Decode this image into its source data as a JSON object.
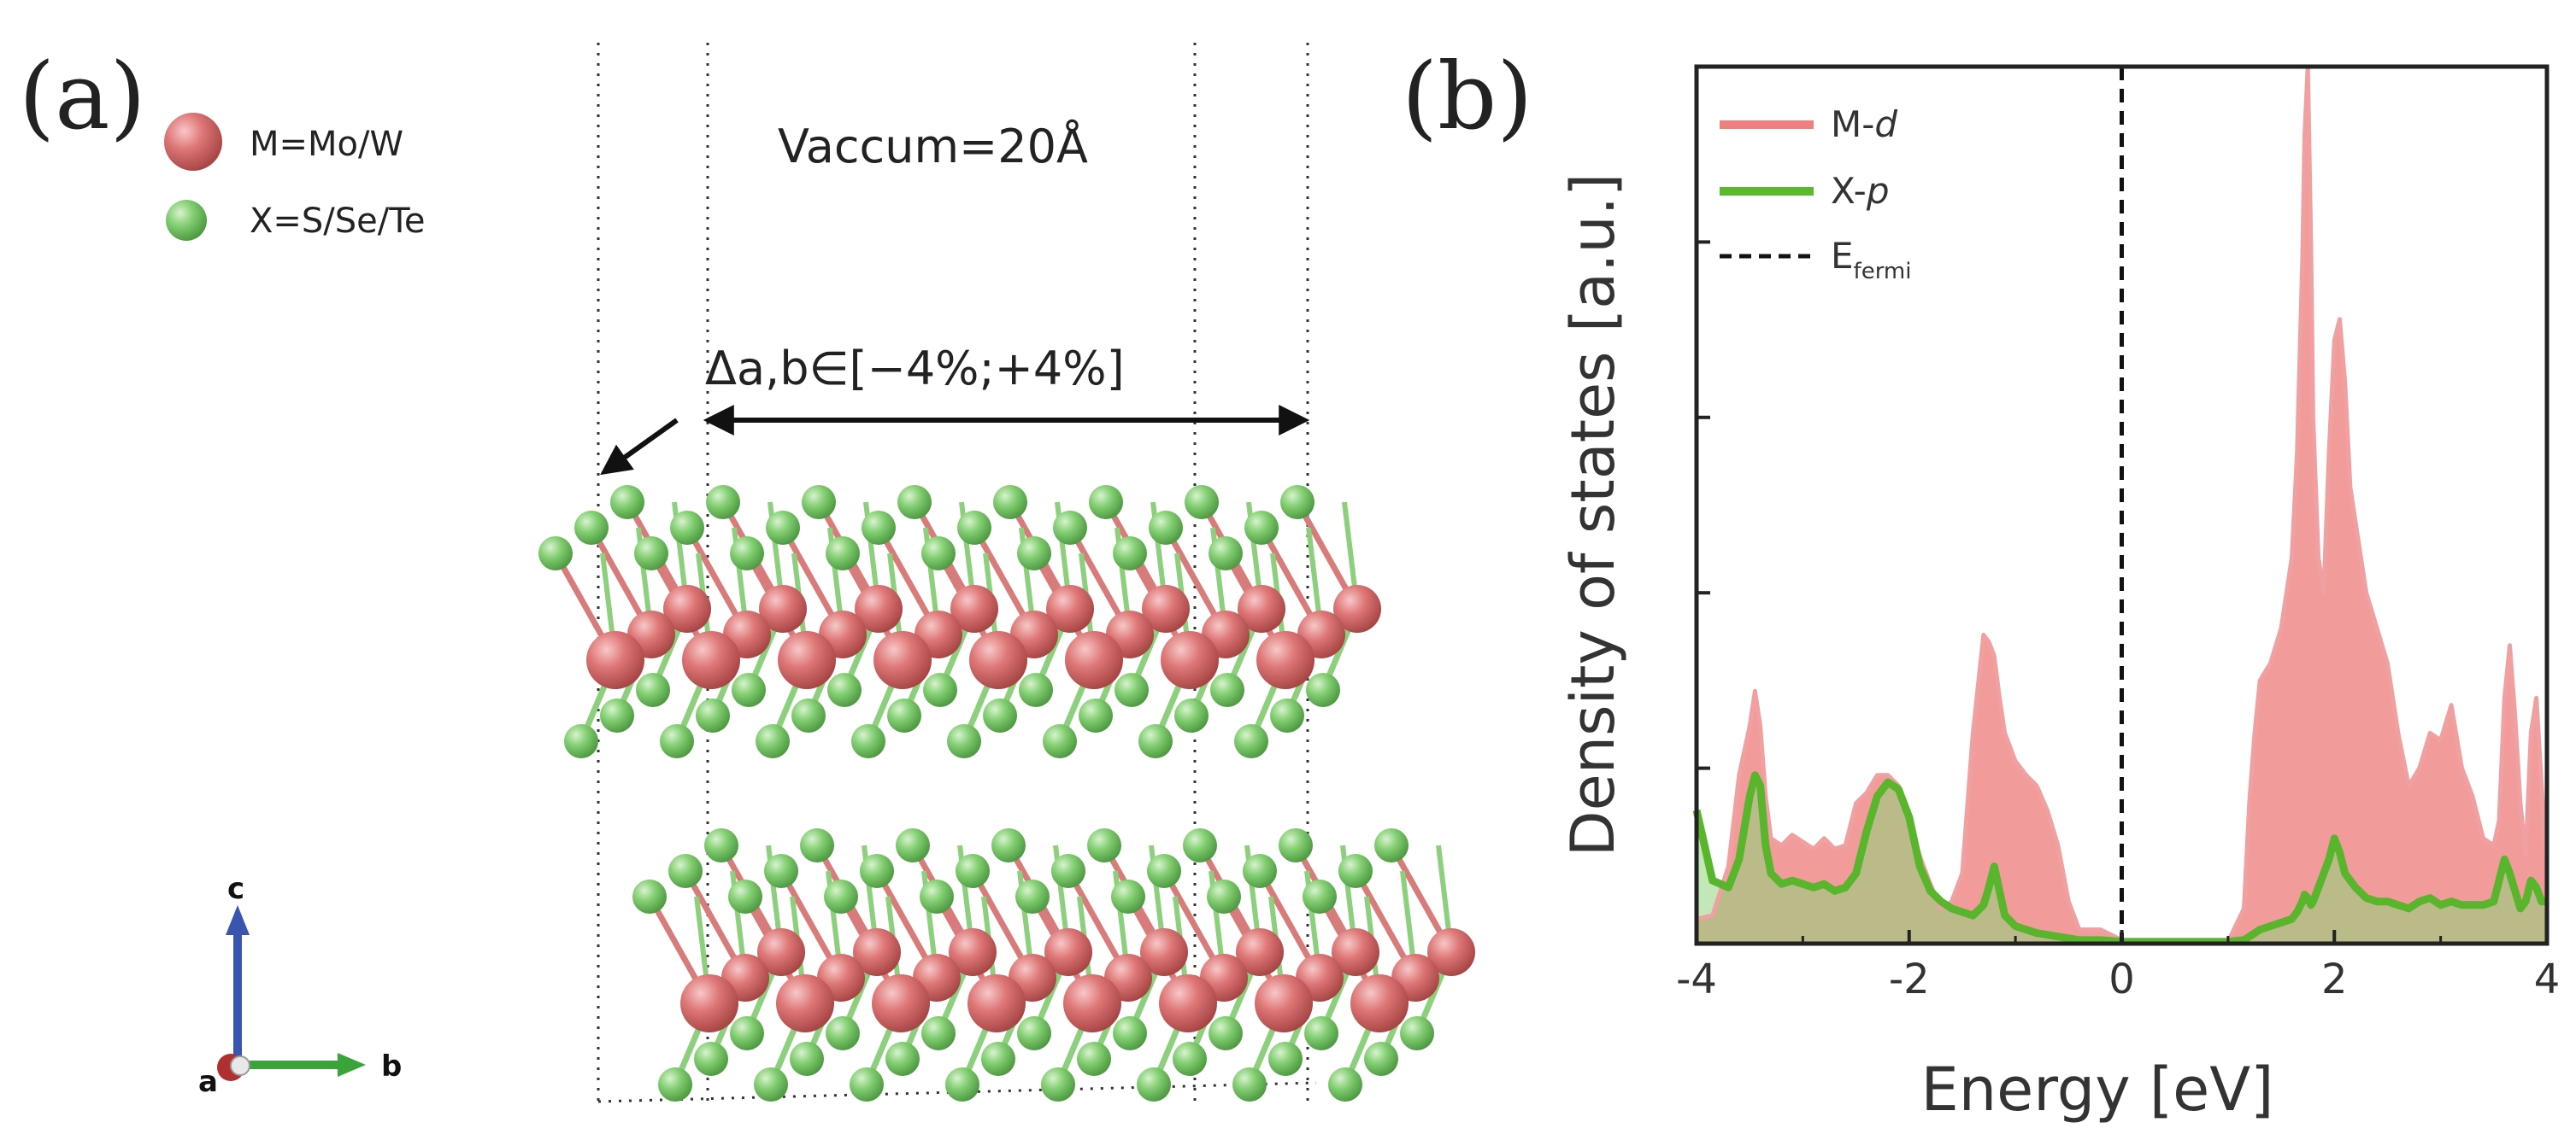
{
  "panel_a": {
    "label": "(a)",
    "legend": [
      {
        "text": "M=Mo/W",
        "color": "#d9686a"
      },
      {
        "text": "X=S/Se/Te",
        "color": "#7cc96d"
      }
    ],
    "vacuum_label": "Vaccum=20Å",
    "strain_label": "Δa,b∈[−4%;+4%]",
    "axes": {
      "c": "c",
      "a": "a",
      "b": "b"
    },
    "colors": {
      "metal": "#d9686a",
      "chalcogen": "#78c868",
      "c_axis": "#3a55b0",
      "b_axis": "#3aa33a",
      "a_axis": "#b03030"
    }
  },
  "panel_b": {
    "label": "(b)",
    "legend": [
      {
        "name": "M-d",
        "prefix": "M-",
        "italic": "d",
        "color": "#ee8080"
      },
      {
        "name": "X-p",
        "prefix": "X-",
        "italic": "p",
        "color": "#5cb82c"
      },
      {
        "name": "E_fermi",
        "prefix": "E",
        "sub": "fermi",
        "color": "#111111"
      }
    ]
  },
  "chart_data": {
    "type": "area",
    "title": "",
    "xlabel": "Energy [eV]",
    "ylabel": "Density of states [a.u.]",
    "xlim": [
      -4,
      4
    ],
    "ylim": [
      0,
      2.5
    ],
    "xticks": [
      -4,
      -2,
      0,
      2,
      4
    ],
    "xtick_labels": [
      "-4",
      "-2",
      "0",
      "2",
      "4"
    ],
    "yticks": [
      0.5,
      1.0,
      1.5,
      2.0
    ],
    "ytick_labels": [],
    "fermi_level": 0,
    "x": [
      -4.0,
      -3.85,
      -3.7,
      -3.6,
      -3.5,
      -3.45,
      -3.4,
      -3.35,
      -3.3,
      -3.2,
      -3.1,
      -3.0,
      -2.9,
      -2.8,
      -2.7,
      -2.6,
      -2.5,
      -2.4,
      -2.3,
      -2.2,
      -2.1,
      -2.0,
      -1.9,
      -1.8,
      -1.7,
      -1.6,
      -1.5,
      -1.4,
      -1.3,
      -1.25,
      -1.2,
      -1.15,
      -1.1,
      -1.0,
      -0.9,
      -0.8,
      -0.7,
      -0.6,
      -0.5,
      -0.4,
      -0.2,
      0.0,
      0.4,
      0.8,
      1.0,
      1.15,
      1.2,
      1.25,
      1.3,
      1.4,
      1.5,
      1.6,
      1.65,
      1.7,
      1.72,
      1.75,
      1.78,
      1.8,
      1.85,
      1.9,
      1.95,
      2.0,
      2.05,
      2.1,
      2.15,
      2.2,
      2.3,
      2.4,
      2.5,
      2.6,
      2.7,
      2.8,
      2.9,
      3.0,
      3.1,
      3.2,
      3.3,
      3.4,
      3.5,
      3.55,
      3.6,
      3.65,
      3.7,
      3.75,
      3.8,
      3.85,
      3.9,
      3.95,
      4.0
    ],
    "series": [
      {
        "name": "M-d",
        "values": [
          0.07,
          0.08,
          0.22,
          0.48,
          0.62,
          0.72,
          0.62,
          0.42,
          0.3,
          0.28,
          0.31,
          0.29,
          0.27,
          0.3,
          0.27,
          0.28,
          0.4,
          0.43,
          0.48,
          0.48,
          0.45,
          0.35,
          0.25,
          0.17,
          0.1,
          0.12,
          0.2,
          0.6,
          0.88,
          0.86,
          0.82,
          0.7,
          0.6,
          0.52,
          0.48,
          0.45,
          0.38,
          0.28,
          0.12,
          0.04,
          0.04,
          0.01,
          0.005,
          0.005,
          0.005,
          0.1,
          0.4,
          0.6,
          0.75,
          0.8,
          0.9,
          1.1,
          1.4,
          1.95,
          2.3,
          2.5,
          2.0,
          1.5,
          1.1,
          1.0,
          1.4,
          1.72,
          1.78,
          1.6,
          1.3,
          1.2,
          1.0,
          0.9,
          0.8,
          0.6,
          0.45,
          0.5,
          0.6,
          0.58,
          0.68,
          0.5,
          0.42,
          0.3,
          0.28,
          0.35,
          0.7,
          0.85,
          0.65,
          0.4,
          0.25,
          0.6,
          0.7,
          0.45,
          0.2
        ]
      },
      {
        "name": "X-p",
        "values": [
          0.38,
          0.18,
          0.16,
          0.24,
          0.42,
          0.48,
          0.45,
          0.28,
          0.2,
          0.17,
          0.18,
          0.17,
          0.16,
          0.17,
          0.15,
          0.16,
          0.2,
          0.32,
          0.42,
          0.46,
          0.44,
          0.36,
          0.22,
          0.15,
          0.12,
          0.1,
          0.09,
          0.08,
          0.11,
          0.16,
          0.22,
          0.15,
          0.08,
          0.05,
          0.04,
          0.03,
          0.025,
          0.02,
          0.015,
          0.01,
          0.01,
          0.005,
          0.005,
          0.005,
          0.005,
          0.01,
          0.02,
          0.03,
          0.04,
          0.05,
          0.06,
          0.07,
          0.09,
          0.12,
          0.14,
          0.13,
          0.11,
          0.12,
          0.16,
          0.2,
          0.24,
          0.3,
          0.26,
          0.2,
          0.18,
          0.16,
          0.13,
          0.12,
          0.12,
          0.11,
          0.1,
          0.12,
          0.13,
          0.11,
          0.12,
          0.11,
          0.11,
          0.11,
          0.12,
          0.18,
          0.24,
          0.2,
          0.15,
          0.1,
          0.12,
          0.18,
          0.16,
          0.12,
          0.12
        ]
      }
    ]
  }
}
